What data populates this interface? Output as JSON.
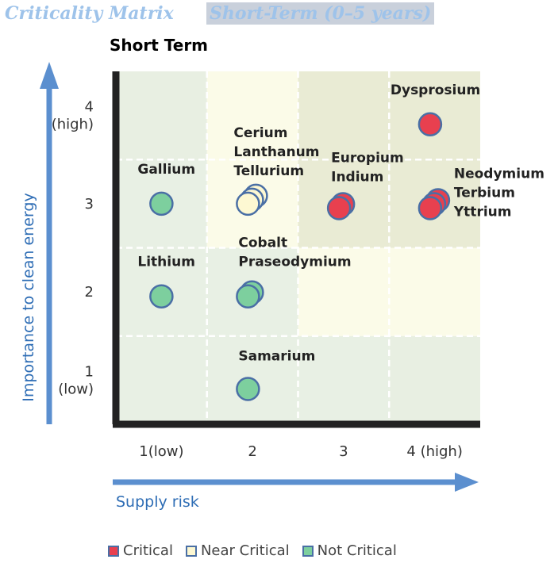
{
  "header": {
    "title": "Criticality Matrix",
    "subtitle_box": "Short-Term (0–5 years)"
  },
  "chart_data": {
    "type": "scatter",
    "title": "Short Term",
    "xlabel": "Supply risk",
    "ylabel": "Importance to clean energy",
    "x_ticks": [
      "1(low)",
      "2",
      "3",
      "4 (high)"
    ],
    "y_ticks": [
      [
        "1",
        "(low)"
      ],
      [
        "2"
      ],
      [
        "3"
      ],
      [
        "4",
        "(high)"
      ]
    ],
    "xlim": [
      0.5,
      4.5
    ],
    "ylim": [
      0.5,
      4.5
    ],
    "colors": {
      "critical": "#e8404f",
      "near_critical": "#fdf8d2",
      "not_critical": "#7dcf9e",
      "marker_edge": "#4a6fa5",
      "axis_arrow": "#5b8fcf",
      "axis_line": "#222222"
    },
    "points": [
      {
        "labels": [
          "Dysprosium"
        ],
        "x": 3.95,
        "y": 3.9,
        "category": "critical",
        "count": 1
      },
      {
        "labels": [
          "Europium",
          "Indium"
        ],
        "x": 2.95,
        "y": 2.95,
        "category": "critical",
        "count": 2
      },
      {
        "labels": [
          "Neodymium",
          "Terbium",
          "Yttrium"
        ],
        "x": 3.95,
        "y": 2.95,
        "category": "critical",
        "count": 3
      },
      {
        "labels": [
          "Gallium"
        ],
        "x": 1.0,
        "y": 3.0,
        "category": "not_critical",
        "count": 1
      },
      {
        "labels": [
          "Cerium",
          "Lanthanum",
          "Tellurium"
        ],
        "x": 1.95,
        "y": 3.0,
        "category": "near_critical",
        "count": 3
      },
      {
        "labels": [
          "Lithium"
        ],
        "x": 1.0,
        "y": 1.95,
        "category": "not_critical",
        "count": 1
      },
      {
        "labels": [
          "Cobalt",
          "Praseodymium"
        ],
        "x": 1.95,
        "y": 1.95,
        "category": "not_critical",
        "count": 2
      },
      {
        "labels": [
          "Samarium"
        ],
        "x": 1.95,
        "y": 0.9,
        "category": "not_critical",
        "count": 1
      }
    ],
    "legend": [
      {
        "label": "Critical",
        "category": "critical"
      },
      {
        "label": "Near Critical",
        "category": "near_critical"
      },
      {
        "label": "Not Critical",
        "category": "not_critical"
      }
    ],
    "legend_position": "bottom"
  }
}
